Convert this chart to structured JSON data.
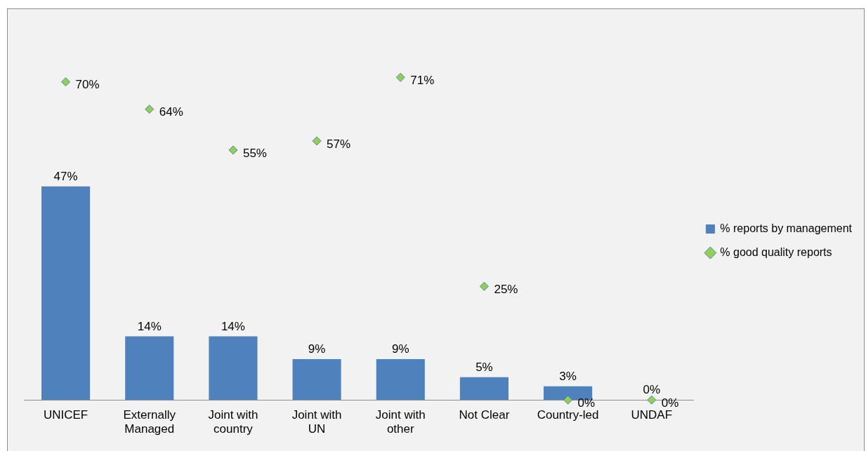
{
  "chart_data": {
    "type": "bar",
    "categories": [
      "UNICEF",
      "Externally Managed",
      "Joint with country",
      "Joint with UN",
      "Joint with other",
      "Not Clear",
      "Country-led",
      "UNDAF"
    ],
    "tick_labels": "x",
    "grid": false,
    "legend": "right",
    "series": [
      {
        "name": "% reports by management",
        "color": "#4f81bd",
        "values": [
          47,
          14,
          14,
          9,
          9,
          5,
          3,
          0
        ],
        "value_labels": [
          "47%",
          "14%",
          "14%",
          "9%",
          "9%",
          "5%",
          "3%",
          "0%"
        ]
      },
      {
        "name": "% good quality reports",
        "type": "scatter",
        "marker": "diamond",
        "color": "#92d050",
        "x": [
          "UNICEF",
          "Externally Managed",
          "Joint with country",
          "Joint with UN",
          "Joint with other",
          "Not Clear",
          "Country-led",
          "UNDAF"
        ],
        "values": [
          70,
          64,
          55,
          57,
          71,
          25,
          0,
          0
        ],
        "value_labels": [
          "70%",
          "64%",
          "55%",
          "57%",
          "71%",
          "25%",
          "0%",
          "0%"
        ]
      }
    ]
  }
}
